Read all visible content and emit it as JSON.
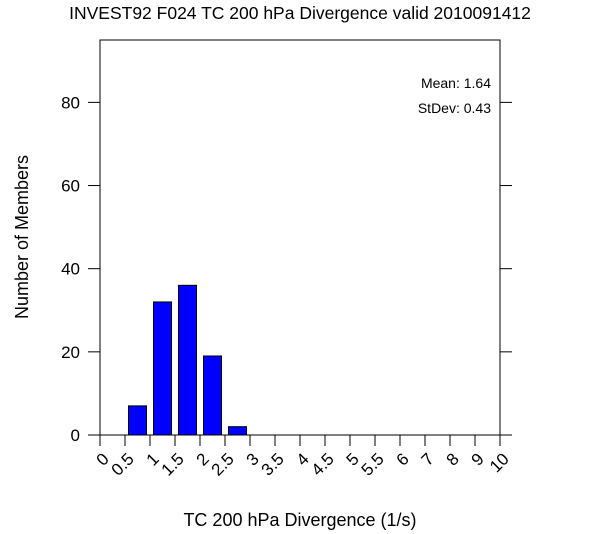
{
  "chart_data": {
    "type": "bar",
    "title": "INVEST92 F024 TC 200 hPa Divergence valid 2010091412",
    "xlabel": "TC 200 hPa Divergence (1/s)",
    "ylabel": "Number of Members",
    "x_tick_labels": [
      "0",
      "0.5",
      "1",
      "1.5",
      "2",
      "2.5",
      "3",
      "3.5",
      "4",
      "4.5",
      "5",
      "5.5",
      "6",
      "7",
      "8",
      "9",
      "10"
    ],
    "y_ticks": [
      0,
      20,
      40,
      60,
      80
    ],
    "ylim": [
      0,
      95
    ],
    "bins": [
      {
        "from": "0.5",
        "to": "1",
        "value": 7
      },
      {
        "from": "1",
        "to": "1.5",
        "value": 32
      },
      {
        "from": "1.5",
        "to": "2",
        "value": 36
      },
      {
        "from": "2",
        "to": "2.5",
        "value": 19
      },
      {
        "from": "2.5",
        "to": "3",
        "value": 2
      }
    ],
    "bar_color": "#0000ff",
    "annotations": [
      {
        "label": "Mean:",
        "value": "1.64"
      },
      {
        "label": "StDev:",
        "value": "0.43"
      }
    ]
  }
}
